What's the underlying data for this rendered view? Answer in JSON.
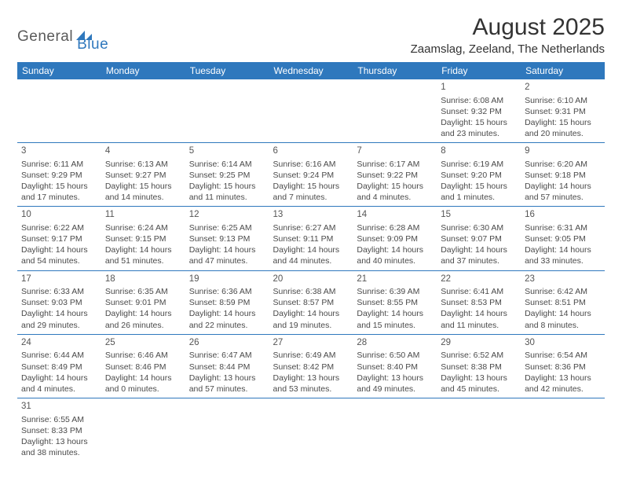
{
  "brand": {
    "part1": "General",
    "part2": "Blue"
  },
  "title": "August 2025",
  "location": "Zaamslag, Zeeland, The Netherlands",
  "colors": {
    "header_bg": "#2f78bd",
    "header_text": "#ffffff",
    "border": "#2f78bd",
    "text": "#4a4a4a"
  },
  "dayHeaders": [
    "Sunday",
    "Monday",
    "Tuesday",
    "Wednesday",
    "Thursday",
    "Friday",
    "Saturday"
  ],
  "weeks": [
    [
      null,
      null,
      null,
      null,
      null,
      {
        "n": "1",
        "sr": "6:08 AM",
        "ss": "9:32 PM",
        "dh": "15",
        "dm": "23"
      },
      {
        "n": "2",
        "sr": "6:10 AM",
        "ss": "9:31 PM",
        "dh": "15",
        "dm": "20"
      }
    ],
    [
      {
        "n": "3",
        "sr": "6:11 AM",
        "ss": "9:29 PM",
        "dh": "15",
        "dm": "17"
      },
      {
        "n": "4",
        "sr": "6:13 AM",
        "ss": "9:27 PM",
        "dh": "15",
        "dm": "14"
      },
      {
        "n": "5",
        "sr": "6:14 AM",
        "ss": "9:25 PM",
        "dh": "15",
        "dm": "11"
      },
      {
        "n": "6",
        "sr": "6:16 AM",
        "ss": "9:24 PM",
        "dh": "15",
        "dm": "7"
      },
      {
        "n": "7",
        "sr": "6:17 AM",
        "ss": "9:22 PM",
        "dh": "15",
        "dm": "4"
      },
      {
        "n": "8",
        "sr": "6:19 AM",
        "ss": "9:20 PM",
        "dh": "15",
        "dm": "1"
      },
      {
        "n": "9",
        "sr": "6:20 AM",
        "ss": "9:18 PM",
        "dh": "14",
        "dm": "57"
      }
    ],
    [
      {
        "n": "10",
        "sr": "6:22 AM",
        "ss": "9:17 PM",
        "dh": "14",
        "dm": "54"
      },
      {
        "n": "11",
        "sr": "6:24 AM",
        "ss": "9:15 PM",
        "dh": "14",
        "dm": "51"
      },
      {
        "n": "12",
        "sr": "6:25 AM",
        "ss": "9:13 PM",
        "dh": "14",
        "dm": "47"
      },
      {
        "n": "13",
        "sr": "6:27 AM",
        "ss": "9:11 PM",
        "dh": "14",
        "dm": "44"
      },
      {
        "n": "14",
        "sr": "6:28 AM",
        "ss": "9:09 PM",
        "dh": "14",
        "dm": "40"
      },
      {
        "n": "15",
        "sr": "6:30 AM",
        "ss": "9:07 PM",
        "dh": "14",
        "dm": "37"
      },
      {
        "n": "16",
        "sr": "6:31 AM",
        "ss": "9:05 PM",
        "dh": "14",
        "dm": "33"
      }
    ],
    [
      {
        "n": "17",
        "sr": "6:33 AM",
        "ss": "9:03 PM",
        "dh": "14",
        "dm": "29"
      },
      {
        "n": "18",
        "sr": "6:35 AM",
        "ss": "9:01 PM",
        "dh": "14",
        "dm": "26"
      },
      {
        "n": "19",
        "sr": "6:36 AM",
        "ss": "8:59 PM",
        "dh": "14",
        "dm": "22"
      },
      {
        "n": "20",
        "sr": "6:38 AM",
        "ss": "8:57 PM",
        "dh": "14",
        "dm": "19"
      },
      {
        "n": "21",
        "sr": "6:39 AM",
        "ss": "8:55 PM",
        "dh": "14",
        "dm": "15"
      },
      {
        "n": "22",
        "sr": "6:41 AM",
        "ss": "8:53 PM",
        "dh": "14",
        "dm": "11"
      },
      {
        "n": "23",
        "sr": "6:42 AM",
        "ss": "8:51 PM",
        "dh": "14",
        "dm": "8"
      }
    ],
    [
      {
        "n": "24",
        "sr": "6:44 AM",
        "ss": "8:49 PM",
        "dh": "14",
        "dm": "4"
      },
      {
        "n": "25",
        "sr": "6:46 AM",
        "ss": "8:46 PM",
        "dh": "14",
        "dm": "0"
      },
      {
        "n": "26",
        "sr": "6:47 AM",
        "ss": "8:44 PM",
        "dh": "13",
        "dm": "57"
      },
      {
        "n": "27",
        "sr": "6:49 AM",
        "ss": "8:42 PM",
        "dh": "13",
        "dm": "53"
      },
      {
        "n": "28",
        "sr": "6:50 AM",
        "ss": "8:40 PM",
        "dh": "13",
        "dm": "49"
      },
      {
        "n": "29",
        "sr": "6:52 AM",
        "ss": "8:38 PM",
        "dh": "13",
        "dm": "45"
      },
      {
        "n": "30",
        "sr": "6:54 AM",
        "ss": "8:36 PM",
        "dh": "13",
        "dm": "42"
      }
    ],
    [
      {
        "n": "31",
        "sr": "6:55 AM",
        "ss": "8:33 PM",
        "dh": "13",
        "dm": "38"
      },
      null,
      null,
      null,
      null,
      null,
      null
    ]
  ]
}
